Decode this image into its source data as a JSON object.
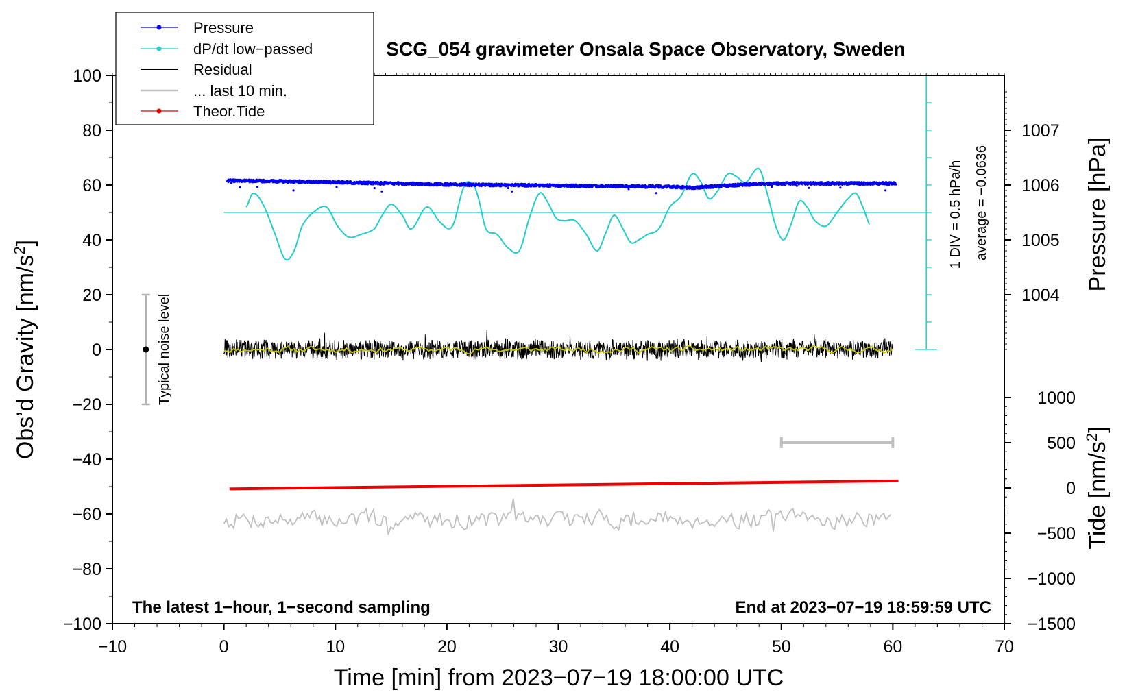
{
  "chart_data": {
    "type": "line",
    "title": "SCG_054 gravimeter Onsala Space Observatory, Sweden",
    "xlabel": "Time [min] from 2023−07−19 18:00:00 UTC",
    "ylabel_left": "Obs’d Gravity [nm/s²]",
    "ylabel_right_top": "Pressure [hPa]",
    "ylabel_right_bottom": "Tide [nm/s²]",
    "xlim": [
      -10,
      70
    ],
    "ylim_left": [
      -100,
      100
    ],
    "xticks": [
      "−10",
      "0",
      "10",
      "20",
      "30",
      "40",
      "50",
      "60",
      "70"
    ],
    "xtick_values": [
      -10,
      0,
      10,
      20,
      30,
      40,
      50,
      60,
      70
    ],
    "yticks_left": [
      "100",
      "80",
      "60",
      "40",
      "20",
      "0",
      "−20",
      "−40",
      "−60",
      "−80",
      "−100"
    ],
    "ytick_left_values": [
      100,
      80,
      60,
      40,
      20,
      0,
      -20,
      -40,
      -60,
      -80,
      -100
    ],
    "pressure_axis": {
      "ticks": [
        "1007",
        "1006",
        "1005",
        "1004"
      ],
      "tick_values": [
        1007,
        1006,
        1005,
        1004
      ],
      "gravity_at_1006": 60,
      "units_per_hPa": 20
    },
    "tide_axis": {
      "ticks": [
        "1000",
        "500",
        "0",
        "−500",
        "−1000",
        "−1500"
      ],
      "tick_values": [
        1000,
        500,
        0,
        -500,
        -1000,
        -1500
      ],
      "range": [
        -1500,
        1000
      ]
    },
    "series": [
      {
        "name": "Pressure",
        "color": "#0000ee",
        "style": "dots",
        "unit": "hPa",
        "x": [
          0.3,
          5,
          10,
          15,
          20,
          25,
          30,
          35,
          40,
          42,
          45,
          48,
          50,
          55,
          60.3
        ],
        "y": [
          1006.08,
          1006.07,
          1006.05,
          1006.03,
          1006.01,
          1006.0,
          1005.99,
          1005.98,
          1005.97,
          1005.95,
          1005.99,
          1006.02,
          1006.03,
          1006.03,
          1006.03
        ]
      },
      {
        "name": "dP/dt low−passed",
        "color": "#22cccc",
        "style": "line",
        "unit": "nm/s² (display)",
        "x": [
          2,
          2.6,
          3.5,
          4.5,
          5.5,
          6.3,
          7,
          8,
          9.2,
          10.2,
          11.2,
          12.3,
          13.5,
          14.2,
          15,
          16,
          16.8,
          18.2,
          19.5,
          20.5,
          21.5,
          22.1,
          22.7,
          23.5,
          24.5,
          25.5,
          26.5,
          27.4,
          28.3,
          29,
          29.8,
          30.5,
          31.5,
          32.5,
          33.5,
          34.3,
          35,
          35.8,
          36.5,
          37.2,
          38,
          39,
          40,
          41,
          42,
          42.8,
          43.5,
          44.3,
          45.2,
          46,
          46.8,
          48,
          48.8,
          49.5,
          50.2,
          50.9,
          51.6,
          52.3,
          53,
          54,
          55,
          56,
          56.7,
          57.3,
          58
        ],
        "y": [
          52,
          57,
          53,
          43,
          33,
          36,
          45,
          50,
          52,
          45,
          41,
          42,
          44,
          49,
          53,
          49,
          44,
          52,
          46,
          45,
          59,
          61,
          57,
          44,
          42,
          37,
          36,
          48,
          57,
          54,
          48,
          47,
          47,
          42,
          36,
          43,
          49,
          44,
          39,
          40,
          42,
          44,
          52,
          56,
          64,
          61,
          55,
          58,
          64,
          63,
          61,
          66,
          56,
          45,
          40,
          46,
          54,
          52,
          47,
          45,
          50,
          55,
          57,
          52,
          45
        ]
      },
      {
        "name": "Residual",
        "color": "#000000",
        "style": "noisy-line",
        "unit": "nm/s²",
        "x": [
          0,
          60
        ],
        "y": [
          0,
          0
        ],
        "amplitude": 4
      },
      {
        "name": "... last 10 min.",
        "color": "#c0c0c0",
        "style": "interval",
        "x": [
          50,
          60
        ],
        "y_tide": [
          500,
          500
        ]
      },
      {
        "name": "Theor.Tide",
        "color": "#ee0000",
        "style": "line",
        "unit": "nm/s² (tide axis)",
        "x": [
          0.5,
          60.5
        ],
        "y": [
          -10,
          77
        ]
      },
      {
        "name": "Smoothed residual",
        "color": "#c8c800",
        "style": "line",
        "x": [
          0,
          60
        ],
        "y": [
          0,
          0
        ]
      },
      {
        "name": "Residual (shifted, gray)",
        "color": "#c0c0c0",
        "style": "noisy-line",
        "x": [
          0,
          60
        ],
        "y": [
          -62,
          -62
        ],
        "amplitude": 3
      }
    ],
    "dpdt_baseline": 50,
    "noise_level": {
      "label": "Typical noise level",
      "x": -7,
      "center": 0,
      "low": -20,
      "high": 20
    },
    "scale_bar": {
      "label": "1 DIV = 0.5 hPa/h",
      "x": 63,
      "y_low": 0,
      "y_high": 100,
      "divisions": 10
    },
    "average_label": "average = −0.0636",
    "annotation_left": "The latest 1−hour, 1−second sampling",
    "annotation_right": "End at 2023−07−19 18:59:59 UTC",
    "legend": [
      "Pressure",
      "dP/dt low−passed",
      "Residual",
      "... last 10 min.",
      "Theor.Tide"
    ],
    "legend_placement": "top-left",
    "grid": false
  }
}
